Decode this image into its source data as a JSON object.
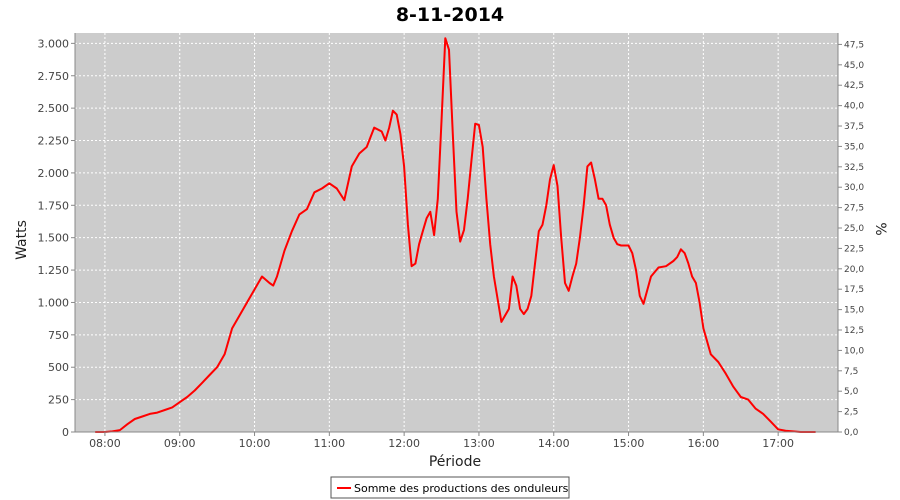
{
  "chart_data": {
    "type": "line",
    "title": "8-11-2014",
    "xlabel": "Période",
    "ylabel": "Watts",
    "y2label": "%",
    "xlim": [
      7.6,
      17.8
    ],
    "ylim": [
      0,
      3080
    ],
    "y2lim": [
      0,
      48.9
    ],
    "x_ticks": [
      8,
      9,
      10,
      11,
      12,
      13,
      14,
      15,
      16,
      17
    ],
    "x_tick_labels": [
      "08:00",
      "09:00",
      "10:00",
      "11:00",
      "12:00",
      "13:00",
      "14:00",
      "15:00",
      "16:00",
      "17:00"
    ],
    "y_ticks": [
      0,
      250,
      500,
      750,
      1000,
      1250,
      1500,
      1750,
      2000,
      2250,
      2500,
      2750,
      3000
    ],
    "y_tick_labels": [
      "0",
      "250",
      "500",
      "750",
      "1.000",
      "1.250",
      "1.500",
      "1.750",
      "2.000",
      "2.250",
      "2.500",
      "2.750",
      "3.000"
    ],
    "y2_ticks": [
      0,
      2.5,
      5,
      7.5,
      10,
      12.5,
      15,
      17.5,
      20,
      22.5,
      25,
      27.5,
      30,
      32.5,
      35,
      37.5,
      40,
      42.5,
      45,
      47.5
    ],
    "y2_tick_labels": [
      "0,0",
      "2,5",
      "5,0",
      "7,5",
      "10,0",
      "12,5",
      "15,0",
      "17,5",
      "20,0",
      "22,5",
      "25,0",
      "27,5",
      "30,0",
      "32,5",
      "35,0",
      "37,5",
      "40,0",
      "42,5",
      "45,0",
      "47,5"
    ],
    "grid": true,
    "legend_position": "bottom-center",
    "colors": {
      "plot_background": "#cccccc",
      "line": "#ff0000",
      "grid": "#ffffff"
    },
    "series": [
      {
        "name": "Somme des productions des onduleurs",
        "x": [
          7.87,
          8.0,
          8.1,
          8.2,
          8.3,
          8.4,
          8.5,
          8.6,
          8.7,
          8.8,
          8.9,
          9.0,
          9.1,
          9.2,
          9.3,
          9.4,
          9.5,
          9.6,
          9.7,
          9.8,
          9.9,
          10.0,
          10.1,
          10.2,
          10.25,
          10.3,
          10.4,
          10.5,
          10.6,
          10.7,
          10.8,
          10.9,
          11.0,
          11.1,
          11.2,
          11.3,
          11.4,
          11.5,
          11.6,
          11.7,
          11.75,
          11.8,
          11.85,
          11.9,
          11.95,
          12.0,
          12.05,
          12.1,
          12.15,
          12.2,
          12.25,
          12.3,
          12.35,
          12.4,
          12.45,
          12.5,
          12.55,
          12.6,
          12.65,
          12.7,
          12.75,
          12.8,
          12.85,
          12.9,
          12.95,
          13.0,
          13.05,
          13.1,
          13.15,
          13.2,
          13.3,
          13.4,
          13.45,
          13.5,
          13.55,
          13.6,
          13.65,
          13.7,
          13.75,
          13.8,
          13.85,
          13.9,
          13.95,
          14.0,
          14.05,
          14.1,
          14.15,
          14.2,
          14.25,
          14.3,
          14.35,
          14.4,
          14.45,
          14.5,
          14.55,
          14.6,
          14.65,
          14.7,
          14.75,
          14.8,
          14.85,
          14.9,
          14.95,
          15.0,
          15.05,
          15.1,
          15.15,
          15.2,
          15.3,
          15.4,
          15.5,
          15.6,
          15.65,
          15.7,
          15.75,
          15.8,
          15.85,
          15.9,
          15.95,
          16.0,
          16.1,
          16.2,
          16.3,
          16.4,
          16.5,
          16.6,
          16.7,
          16.8,
          16.9,
          17.0,
          17.1,
          17.2,
          17.3,
          17.4,
          17.5
        ],
        "y": [
          0,
          0,
          5,
          15,
          60,
          100,
          120,
          140,
          150,
          170,
          190,
          230,
          270,
          320,
          380,
          440,
          500,
          600,
          800,
          900,
          1000,
          1100,
          1200,
          1150,
          1130,
          1200,
          1400,
          1550,
          1680,
          1720,
          1850,
          1880,
          1920,
          1880,
          1790,
          2050,
          2150,
          2200,
          2350,
          2320,
          2250,
          2350,
          2480,
          2450,
          2300,
          2050,
          1600,
          1280,
          1300,
          1450,
          1550,
          1650,
          1700,
          1520,
          1800,
          2400,
          3040,
          2950,
          2300,
          1700,
          1470,
          1560,
          1800,
          2100,
          2380,
          2370,
          2200,
          1800,
          1450,
          1200,
          850,
          950,
          1200,
          1130,
          950,
          910,
          950,
          1050,
          1300,
          1550,
          1600,
          1750,
          1950,
          2060,
          1900,
          1500,
          1150,
          1090,
          1200,
          1300,
          1500,
          1750,
          2050,
          2080,
          1950,
          1800,
          1800,
          1750,
          1600,
          1500,
          1450,
          1440,
          1440,
          1440,
          1380,
          1250,
          1050,
          990,
          1200,
          1270,
          1280,
          1320,
          1350,
          1410,
          1380,
          1300,
          1200,
          1150,
          1000,
          800,
          600,
          540,
          450,
          350,
          270,
          250,
          180,
          140,
          80,
          20,
          10,
          5,
          0,
          0,
          0
        ]
      }
    ]
  }
}
